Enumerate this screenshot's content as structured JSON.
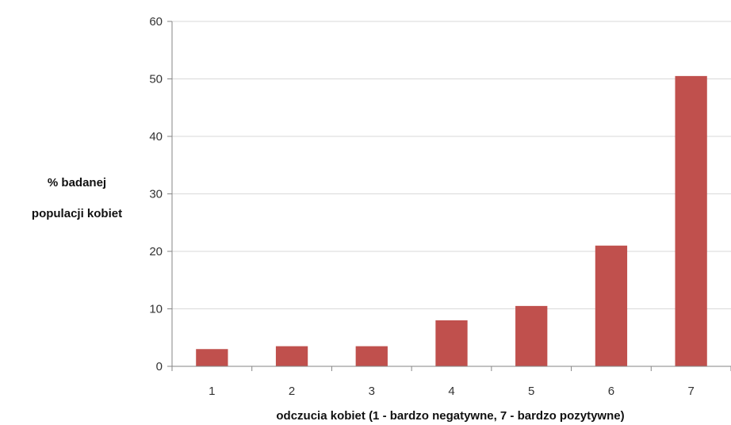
{
  "chart_data": {
    "type": "bar",
    "categories": [
      "1",
      "2",
      "3",
      "4",
      "5",
      "6",
      "7"
    ],
    "values": [
      3,
      3.5,
      3.5,
      8,
      10.5,
      21,
      50.5
    ],
    "title": "",
    "xlabel": "odczucia kobiet (1 - bardzo negatywne, 7 - bardzo pozytywne)",
    "ylabel_lines": [
      "% badanej",
      "populacji kobiet"
    ],
    "ylim": [
      0,
      60
    ],
    "yticks": [
      0,
      10,
      20,
      30,
      40,
      50,
      60
    ],
    "grid": true,
    "legend": "none",
    "colors": {
      "bar": "#c0504d",
      "grid": "#d9d9d9",
      "axis": "#868686"
    }
  }
}
